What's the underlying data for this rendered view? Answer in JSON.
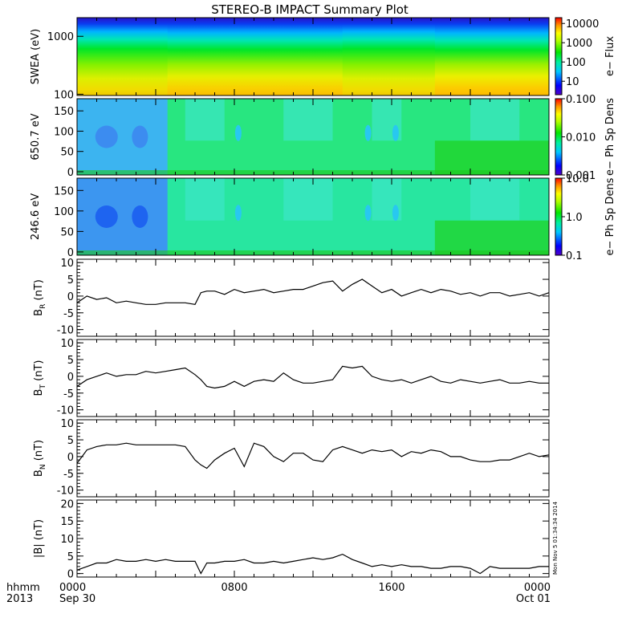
{
  "title": "STEREO-B IMPACT Summary Plot",
  "stamp": "Mon Nov  5 01:34:34 2014",
  "x_label_left": [
    "hhmm",
    "2013"
  ],
  "chart_data": [
    {
      "type": "heatmap",
      "ylabel": "SWEA (eV)",
      "y_scale": "log",
      "ylim": [
        95,
        2100
      ],
      "yticks": [
        "1000",
        "100"
      ],
      "colorbar": {
        "label": "e− Flux",
        "scale": "log",
        "range": [
          2,
          20000
        ],
        "ticks": [
          "10000",
          "1000",
          "100",
          "10"
        ]
      }
    },
    {
      "type": "heatmap",
      "ylabel": "650.7 eV",
      "ylim": [
        -8,
        180
      ],
      "yticks": [
        "0",
        "50",
        "100",
        "150"
      ],
      "colorbar": {
        "label": "e− Ph Sp Dens",
        "scale": "log",
        "range": [
          0.001,
          0.1
        ],
        "ticks": [
          "0.100",
          "0.010",
          "0.001"
        ]
      }
    },
    {
      "type": "heatmap",
      "ylabel": "246.6 eV",
      "ylim": [
        -8,
        180
      ],
      "yticks": [
        "0",
        "50",
        "100",
        "150"
      ],
      "colorbar": {
        "label": "e− Ph Sp Dens",
        "scale": "log",
        "range": [
          0.1,
          10
        ],
        "ticks": [
          "10.0",
          "1.0",
          "0.1"
        ]
      }
    },
    {
      "type": "line",
      "ylabel_main": "B",
      "ylabel_sub": "R",
      "ylabel_unit": " (nT)",
      "ylim": [
        -12,
        11
      ],
      "yticks": [
        "10",
        "5",
        "0",
        "-5",
        "-10"
      ],
      "x": [
        0,
        0.5,
        1,
        1.5,
        2,
        2.5,
        3,
        3.5,
        4,
        4.5,
        5,
        5.5,
        6,
        6.3,
        6.6,
        7,
        7.5,
        8,
        8.5,
        9,
        9.5,
        10,
        10.5,
        11,
        11.5,
        12,
        12.5,
        13,
        13.5,
        14,
        14.5,
        15,
        15.5,
        16,
        16.5,
        17,
        17.5,
        18,
        18.5,
        19,
        19.5,
        20,
        20.5,
        21,
        21.5,
        22,
        22.5,
        23,
        23.5,
        24
      ],
      "y": [
        -2,
        0,
        -1,
        -0.5,
        -2,
        -1.5,
        -2,
        -2.5,
        -2.5,
        -2,
        -2,
        -2,
        -2.5,
        1,
        1.5,
        1.5,
        0.5,
        2,
        1,
        1.5,
        2,
        1,
        1.5,
        2,
        2,
        3,
        4,
        4.5,
        1.5,
        3.5,
        5,
        3,
        1,
        2,
        0,
        1,
        2,
        1,
        2,
        1.5,
        0.5,
        1,
        0,
        1,
        1,
        0,
        0.5,
        1,
        0,
        1
      ]
    },
    {
      "type": "line",
      "ylabel_main": "B",
      "ylabel_sub": "T",
      "ylabel_unit": " (nT)",
      "ylim": [
        -12,
        11
      ],
      "yticks": [
        "10",
        "5",
        "0",
        "-5",
        "-10"
      ],
      "x": [
        0,
        0.5,
        1,
        1.5,
        2,
        2.5,
        3,
        3.5,
        4,
        4.5,
        5,
        5.5,
        6,
        6.3,
        6.6,
        7,
        7.5,
        8,
        8.5,
        9,
        9.5,
        10,
        10.5,
        11,
        11.5,
        12,
        12.5,
        13,
        13.5,
        14,
        14.5,
        15,
        15.5,
        16,
        16.5,
        17,
        17.5,
        18,
        18.5,
        19,
        19.5,
        20,
        20.5,
        21,
        21.5,
        22,
        22.5,
        23,
        23.5,
        24
      ],
      "y": [
        -3,
        -1,
        0,
        1,
        0,
        0.5,
        0.5,
        1.5,
        1,
        1.5,
        2,
        2.5,
        0.5,
        -1,
        -3,
        -3.5,
        -3,
        -1.5,
        -3,
        -1.5,
        -1,
        -1.5,
        1,
        -1,
        -2,
        -2,
        -1.5,
        -1,
        3,
        2.5,
        3,
        0,
        -1,
        -1.5,
        -1,
        -2,
        -1,
        0,
        -1.5,
        -2,
        -1,
        -1.5,
        -2,
        -1.5,
        -1,
        -2,
        -2,
        -1.5,
        -2,
        -2
      ]
    },
    {
      "type": "line",
      "ylabel_main": "B",
      "ylabel_sub": "N",
      "ylabel_unit": " (nT)",
      "ylim": [
        -12,
        11
      ],
      "yticks": [
        "10",
        "5",
        "0",
        "-5",
        "-10"
      ],
      "x": [
        0,
        0.5,
        1,
        1.5,
        2,
        2.5,
        3,
        3.5,
        4,
        4.5,
        5,
        5.5,
        6,
        6.3,
        6.6,
        7,
        7.5,
        8,
        8.5,
        9,
        9.5,
        10,
        10.5,
        11,
        11.5,
        12,
        12.5,
        13,
        13.5,
        14,
        14.5,
        15,
        15.5,
        16,
        16.5,
        17,
        17.5,
        18,
        18.5,
        19,
        19.5,
        20,
        20.5,
        21,
        21.5,
        22,
        22.5,
        23,
        23.5,
        24
      ],
      "y": [
        -2,
        2,
        3,
        3.5,
        3.5,
        4,
        3.5,
        3.5,
        3.5,
        3.5,
        3.5,
        3,
        -1,
        -2.5,
        -3.5,
        -1,
        1,
        2.5,
        -3,
        4,
        3,
        0,
        -1.5,
        1,
        1,
        -1,
        -1.5,
        2,
        3,
        2,
        1,
        2,
        1.5,
        2,
        0,
        1.5,
        1,
        2,
        1.5,
        0,
        0,
        -1,
        -1.5,
        -1.5,
        -1,
        -1,
        0,
        1,
        0,
        0.5
      ]
    },
    {
      "type": "line",
      "ylabel": "|B| (nT)",
      "ylim": [
        -1,
        21
      ],
      "yticks": [
        "20",
        "15",
        "10",
        "5",
        "0"
      ],
      "x": [
        0,
        0.5,
        1,
        1.5,
        2,
        2.5,
        3,
        3.5,
        4,
        4.5,
        5,
        5.5,
        6,
        6.3,
        6.6,
        7,
        7.5,
        8,
        8.5,
        9,
        9.5,
        10,
        10.5,
        11,
        11.5,
        12,
        12.5,
        13,
        13.5,
        14,
        14.5,
        15,
        15.5,
        16,
        16.5,
        17,
        17.5,
        18,
        18.5,
        19,
        19.5,
        20,
        20.5,
        21,
        21.5,
        22,
        22.5,
        23,
        23.5,
        24
      ],
      "y": [
        1,
        2,
        3,
        3,
        4,
        3.5,
        3.5,
        4,
        3.5,
        4,
        3.5,
        3.5,
        3.5,
        0,
        3,
        3,
        3.5,
        3.5,
        4,
        3,
        3,
        3.5,
        3,
        3.5,
        4,
        4.5,
        4,
        4.5,
        5.5,
        4,
        3,
        2,
        2.5,
        2,
        2.5,
        2,
        2,
        1.5,
        1.5,
        2,
        2,
        1.5,
        0,
        2,
        1.5,
        1.5,
        1.5,
        1.5,
        2,
        2
      ]
    }
  ],
  "xaxis": {
    "xlim": [
      0,
      24
    ],
    "ticks": [
      {
        "x": 0,
        "line1": "0000",
        "line2": "Sep 30"
      },
      {
        "x": 8,
        "line1": "0800",
        "line2": ""
      },
      {
        "x": 16,
        "line1": "1600",
        "line2": ""
      },
      {
        "x": 24,
        "line1": "0000",
        "line2": "Oct 01"
      }
    ]
  },
  "colors": {
    "line": "#000000",
    "axis": "#000000"
  }
}
